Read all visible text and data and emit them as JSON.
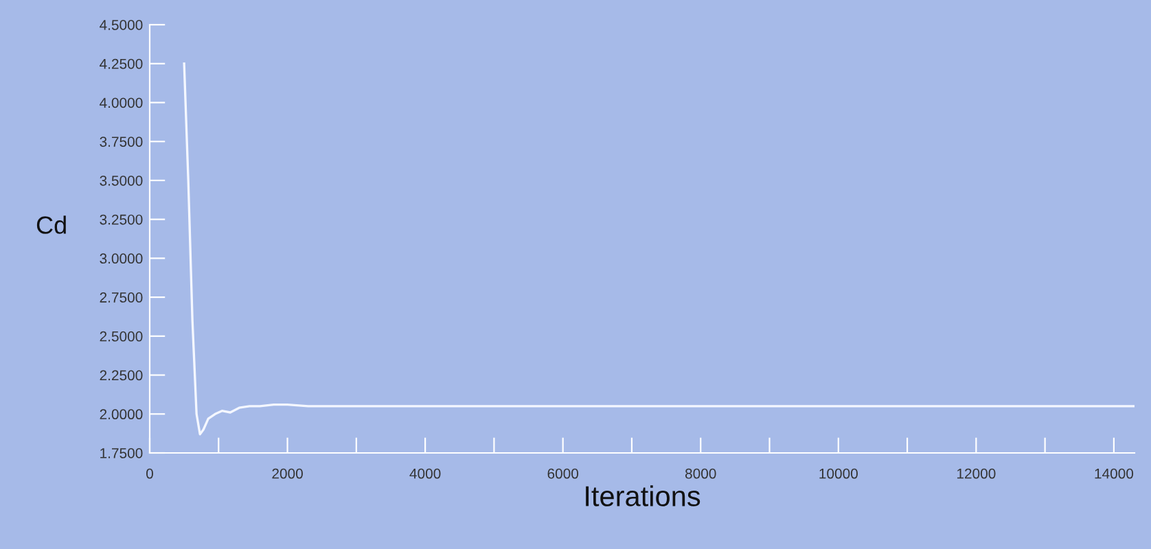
{
  "chart_data": {
    "type": "line",
    "xlabel": "Iterations",
    "ylabel": "Cd",
    "x": [
      500,
      560,
      620,
      680,
      730,
      780,
      850,
      950,
      1050,
      1170,
      1300,
      1450,
      1600,
      1800,
      2000,
      2300,
      2600,
      3000,
      3100,
      5000,
      8000,
      11000,
      14300
    ],
    "series": [
      {
        "color": "#f4f7ff",
        "values": [
          4.25,
          3.5,
          2.6,
          2.0,
          1.87,
          1.9,
          1.97,
          2.0,
          2.02,
          2.01,
          2.04,
          2.05,
          2.05,
          2.06,
          2.06,
          2.05,
          2.05,
          2.05,
          2.05,
          2.05,
          2.05,
          2.05,
          2.05
        ]
      }
    ],
    "xlim": [
      0,
      14300
    ],
    "xticks": [
      0,
      {
        "value": 1000,
        "label": null
      },
      2000,
      {
        "value": 3000,
        "label": null
      },
      4000,
      {
        "value": 5000,
        "label": null
      },
      6000,
      {
        "value": 7000,
        "label": null
      },
      8000,
      {
        "value": 9000,
        "label": null
      },
      10000,
      {
        "value": 11000,
        "label": null
      },
      12000,
      {
        "value": 13000,
        "label": null
      },
      14000
    ],
    "ylim": [
      1.75,
      4.5
    ],
    "yticks": [
      {
        "value": 1.75,
        "label": "1.7500"
      },
      {
        "value": 2.0,
        "label": "2.0000"
      },
      {
        "value": 2.25,
        "label": "2.2500"
      },
      {
        "value": 2.5,
        "label": "2.5000"
      },
      {
        "value": 2.75,
        "label": "2.7500"
      },
      {
        "value": 3.0,
        "label": "3.0000"
      },
      {
        "value": 3.25,
        "label": "3.2500"
      },
      {
        "value": 3.5,
        "label": "3.5000"
      },
      {
        "value": 3.75,
        "label": "3.7500"
      },
      {
        "value": 4.0,
        "label": "4.0000"
      },
      {
        "value": 4.25,
        "label": "4.2500"
      },
      {
        "value": 4.5,
        "label": "4.5000"
      }
    ],
    "grid": false,
    "legend": false,
    "marker": "none",
    "line_style": "solid"
  }
}
